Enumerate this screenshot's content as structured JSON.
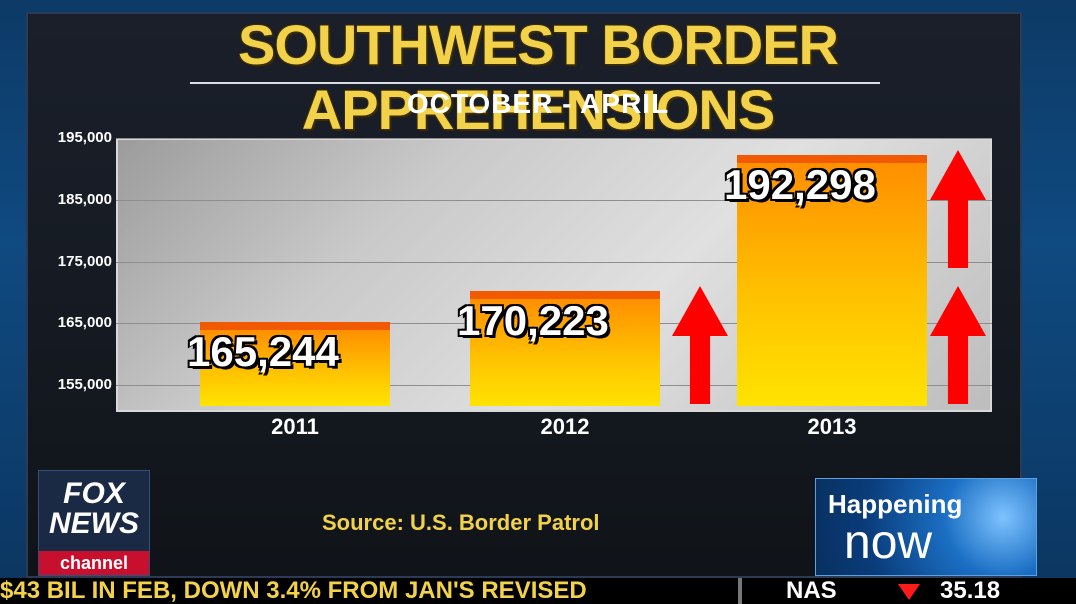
{
  "chart_data": {
    "type": "bar",
    "title": "SOUTHWEST BORDER APPREHENSIONS",
    "subtitle": "OCTOBER - APRIL",
    "categories": [
      "2011",
      "2012",
      "2013"
    ],
    "values": [
      165244,
      170223,
      192298
    ],
    "value_labels": [
      "165,244",
      "170,223",
      "192,298"
    ],
    "ylim": [
      151000,
      195000
    ],
    "yticks": [
      155000,
      165000,
      175000,
      185000,
      195000
    ],
    "ytick_labels": [
      "155,000",
      "165,000",
      "175,000",
      "185,000",
      "195,000"
    ],
    "grid": true,
    "bar_color": "#ffc200",
    "bar_top_color": "#f15a00",
    "annotations": [
      "up-arrow",
      "up-arrow",
      "up-arrow"
    ]
  },
  "source": "Source: U.S. Border Patrol",
  "logo": {
    "line1": "FOX",
    "line2": "NEWS",
    "channel": "channel"
  },
  "happening": {
    "line1": "Happening",
    "line2": "now"
  },
  "ticker": {
    "text": "$43 BIL IN FEB, DOWN 3.4% FROM JAN'S REVISED",
    "symbol": "NAS",
    "direction": "down",
    "value": "35.18"
  },
  "colors": {
    "title": "#f2d24a",
    "arrow": "#ff0000",
    "ticker_down": "#ff1a1a"
  }
}
